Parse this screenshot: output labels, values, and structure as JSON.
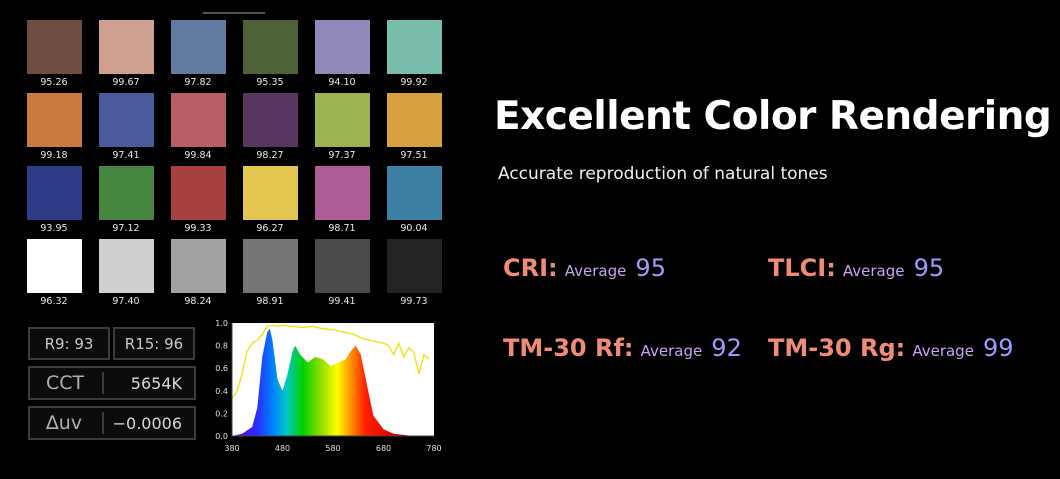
{
  "swatches": [
    {
      "color": "#6e4e42",
      "value": "95.26"
    },
    {
      "color": "#cfa08f",
      "value": "99.67"
    },
    {
      "color": "#6279a0",
      "value": "97.82"
    },
    {
      "color": "#4f6138",
      "value": "95.35"
    },
    {
      "color": "#8f88b8",
      "value": "94.10"
    },
    {
      "color": "#79bcab",
      "value": "99.92"
    },
    {
      "color": "#c97a40",
      "value": "99.18"
    },
    {
      "color": "#4c5a9e",
      "value": "97.41"
    },
    {
      "color": "#b85e66",
      "value": "99.84"
    },
    {
      "color": "#56365e",
      "value": "98.27"
    },
    {
      "color": "#9cb450",
      "value": "97.37"
    },
    {
      "color": "#d9a040",
      "value": "97.51"
    },
    {
      "color": "#2e3b86",
      "value": "93.95"
    },
    {
      "color": "#478640",
      "value": "97.12"
    },
    {
      "color": "#a84040",
      "value": "99.33"
    },
    {
      "color": "#e3c650",
      "value": "96.27"
    },
    {
      "color": "#ad5e96",
      "value": "98.71"
    },
    {
      "color": "#3c80a6",
      "value": "90.04"
    },
    {
      "color": "#ffffff",
      "value": "96.32"
    },
    {
      "color": "#cfcfcf",
      "value": "97.40"
    },
    {
      "color": "#a2a2a2",
      "value": "98.24"
    },
    {
      "color": "#767676",
      "value": "98.91"
    },
    {
      "color": "#4a4a4a",
      "value": "99.41"
    },
    {
      "color": "#242424",
      "value": "99.73"
    }
  ],
  "readouts": {
    "r9": "R9: 93",
    "r15": "R15: 96",
    "cct_label": "CCT",
    "cct_value": "5654K",
    "duv_label": "∆uv",
    "duv_value": "−0.0006"
  },
  "spectrum": {
    "y_ticks": [
      "1.0",
      "0.8",
      "0.6",
      "0.4",
      "0.2",
      "0.0"
    ],
    "x_ticks": [
      "380",
      "480",
      "580",
      "680",
      "780"
    ],
    "x_range": [
      380,
      780
    ],
    "y_range": [
      0,
      1.0
    ],
    "spd": [
      [
        380,
        0.0
      ],
      [
        400,
        0.02
      ],
      [
        420,
        0.08
      ],
      [
        430,
        0.25
      ],
      [
        440,
        0.7
      ],
      [
        450,
        0.92
      ],
      [
        455,
        0.95
      ],
      [
        460,
        0.85
      ],
      [
        470,
        0.5
      ],
      [
        480,
        0.4
      ],
      [
        490,
        0.55
      ],
      [
        500,
        0.75
      ],
      [
        505,
        0.8
      ],
      [
        515,
        0.72
      ],
      [
        530,
        0.65
      ],
      [
        545,
        0.7
      ],
      [
        560,
        0.68
      ],
      [
        575,
        0.62
      ],
      [
        590,
        0.65
      ],
      [
        605,
        0.68
      ],
      [
        615,
        0.75
      ],
      [
        625,
        0.8
      ],
      [
        635,
        0.72
      ],
      [
        645,
        0.5
      ],
      [
        660,
        0.18
      ],
      [
        680,
        0.06
      ],
      [
        700,
        0.02
      ],
      [
        740,
        0.0
      ],
      [
        780,
        0.0
      ]
    ],
    "reference": [
      [
        380,
        0.33
      ],
      [
        390,
        0.4
      ],
      [
        400,
        0.55
      ],
      [
        410,
        0.75
      ],
      [
        420,
        0.82
      ],
      [
        430,
        0.85
      ],
      [
        440,
        0.9
      ],
      [
        450,
        0.97
      ],
      [
        460,
        0.98
      ],
      [
        470,
        0.97
      ],
      [
        480,
        0.98
      ],
      [
        500,
        0.97
      ],
      [
        520,
        0.96
      ],
      [
        540,
        0.97
      ],
      [
        560,
        0.95
      ],
      [
        580,
        0.94
      ],
      [
        600,
        0.92
      ],
      [
        620,
        0.9
      ],
      [
        640,
        0.86
      ],
      [
        660,
        0.84
      ],
      [
        680,
        0.82
      ],
      [
        690,
        0.8
      ],
      [
        700,
        0.72
      ],
      [
        710,
        0.82
      ],
      [
        720,
        0.7
      ],
      [
        730,
        0.78
      ],
      [
        740,
        0.74
      ],
      [
        750,
        0.55
      ],
      [
        760,
        0.72
      ],
      [
        770,
        0.68
      ]
    ],
    "reference_color": "#f0e000"
  },
  "title": "Excellent Color Rendering",
  "subtitle": "Accurate reproduction of natural tones",
  "metrics": {
    "cri": {
      "name": "CRI:",
      "avg": "Average",
      "num": "95"
    },
    "tlci": {
      "name": "TLCI:",
      "avg": "Average",
      "num": "95"
    },
    "rf": {
      "name": "TM-30 Rf:",
      "avg": "Average",
      "num": "92"
    },
    "rg": {
      "name": "TM-30 Rg:",
      "avg": "Average",
      "num": "99"
    }
  },
  "colors": {
    "metric_name": "#f08b76",
    "metric_avg": "#c6a4f2",
    "metric_num": "#9c9cff"
  }
}
